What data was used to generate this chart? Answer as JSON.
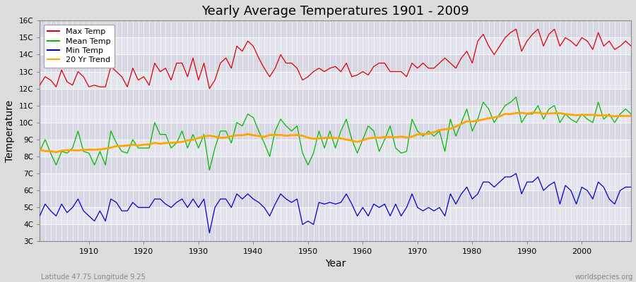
{
  "title": "Yearly Average Temperatures 1901 - 2009",
  "xlabel": "Year",
  "ylabel": "Temperature",
  "x_label_bottom_left": "Latitude 47.75 Longitude 9.25",
  "x_label_bottom_right": "worldspecies.org",
  "year_start": 1901,
  "year_end": 2009,
  "ylim": [
    3,
    16
  ],
  "yticks": [
    3,
    4,
    5,
    6,
    7,
    8,
    9,
    10,
    11,
    12,
    13,
    14,
    15,
    16
  ],
  "ytick_labels": [
    "3C",
    "4C",
    "5C",
    "6C",
    "7C",
    "8C",
    "9C",
    "10C",
    "11C",
    "12C",
    "13C",
    "14C",
    "15C",
    "16C"
  ],
  "xticks": [
    1910,
    1920,
    1930,
    1940,
    1950,
    1960,
    1970,
    1980,
    1990,
    2000
  ],
  "background_color": "#dcdcdc",
  "plot_bg_color": "#e0e0e8",
  "grid_color": "#ffffff",
  "max_temp_color": "#dd0000",
  "mean_temp_color": "#00bb00",
  "min_temp_color": "#0000cc",
  "trend_color": "#ffa500",
  "legend_items": [
    "Max Temp",
    "Mean Temp",
    "Min Temp",
    "20 Yr Trend"
  ],
  "max_temp": [
    12.2,
    12.7,
    12.5,
    12.1,
    13.1,
    12.4,
    12.2,
    13.0,
    12.7,
    12.1,
    12.2,
    12.1,
    12.1,
    13.3,
    13.0,
    12.7,
    12.1,
    13.2,
    12.5,
    12.7,
    12.2,
    13.5,
    13.0,
    13.2,
    12.5,
    13.5,
    13.5,
    12.7,
    13.8,
    12.5,
    13.5,
    12.0,
    12.5,
    13.5,
    13.8,
    13.2,
    14.5,
    14.2,
    14.8,
    14.5,
    13.8,
    13.2,
    12.7,
    13.2,
    14.0,
    13.5,
    13.5,
    13.2,
    12.5,
    12.7,
    13.0,
    13.2,
    13.0,
    13.2,
    13.3,
    13.0,
    13.5,
    12.7,
    12.8,
    13.0,
    12.8,
    13.3,
    13.5,
    13.5,
    13.0,
    13.0,
    13.0,
    12.7,
    13.5,
    13.2,
    13.5,
    13.2,
    13.2,
    13.5,
    13.8,
    13.5,
    13.2,
    13.8,
    14.2,
    13.5,
    14.8,
    15.2,
    14.5,
    14.0,
    14.5,
    15.0,
    15.3,
    15.5,
    14.2,
    14.8,
    15.2,
    15.5,
    14.5,
    15.2,
    15.5,
    14.5,
    15.0,
    14.8,
    14.5,
    15.0,
    14.8,
    14.3,
    15.3,
    14.5,
    14.8,
    14.3,
    14.5,
    14.8,
    14.5
  ],
  "mean_temp": [
    8.3,
    9.0,
    8.2,
    7.5,
    8.3,
    8.2,
    8.5,
    9.5,
    8.3,
    8.2,
    7.5,
    8.3,
    7.5,
    9.5,
    8.8,
    8.3,
    8.2,
    9.0,
    8.5,
    8.5,
    8.5,
    10.0,
    9.3,
    9.3,
    8.5,
    8.8,
    9.5,
    8.5,
    9.3,
    8.5,
    9.3,
    7.2,
    8.5,
    9.5,
    9.5,
    8.8,
    10.0,
    9.8,
    10.5,
    10.3,
    9.5,
    8.8,
    8.0,
    9.5,
    10.2,
    9.8,
    9.5,
    9.8,
    8.2,
    7.5,
    8.2,
    9.5,
    8.5,
    9.5,
    8.5,
    9.5,
    10.2,
    9.0,
    8.2,
    9.0,
    9.8,
    9.5,
    8.3,
    9.0,
    9.8,
    8.5,
    8.2,
    8.3,
    10.2,
    9.5,
    9.2,
    9.5,
    9.2,
    9.5,
    8.3,
    10.2,
    9.2,
    10.0,
    10.8,
    9.5,
    10.2,
    11.2,
    10.8,
    10.0,
    10.5,
    11.0,
    11.2,
    11.5,
    10.0,
    10.5,
    10.5,
    11.0,
    10.2,
    10.8,
    11.0,
    10.0,
    10.5,
    10.2,
    10.0,
    10.5,
    10.2,
    10.0,
    11.2,
    10.2,
    10.5,
    10.0,
    10.5,
    10.8,
    10.5
  ],
  "min_temp": [
    4.5,
    5.2,
    4.8,
    4.5,
    5.2,
    4.7,
    5.0,
    5.5,
    4.8,
    4.5,
    4.2,
    4.8,
    4.2,
    5.5,
    5.3,
    4.8,
    4.8,
    5.3,
    5.0,
    5.0,
    5.0,
    5.5,
    5.5,
    5.2,
    5.0,
    5.3,
    5.5,
    5.0,
    5.5,
    5.0,
    5.5,
    3.5,
    5.0,
    5.5,
    5.5,
    5.0,
    5.8,
    5.5,
    5.8,
    5.5,
    5.3,
    5.0,
    4.5,
    5.2,
    5.8,
    5.5,
    5.3,
    5.5,
    4.0,
    4.2,
    4.0,
    5.3,
    5.2,
    5.3,
    5.2,
    5.3,
    5.8,
    5.2,
    4.5,
    5.0,
    4.5,
    5.2,
    5.0,
    5.2,
    4.5,
    5.2,
    4.5,
    5.0,
    5.8,
    5.0,
    4.8,
    5.0,
    4.8,
    5.0,
    4.5,
    5.8,
    5.2,
    5.8,
    6.2,
    5.5,
    5.8,
    6.5,
    6.5,
    6.2,
    6.5,
    6.8,
    6.8,
    7.0,
    5.8,
    6.5,
    6.5,
    6.8,
    6.0,
    6.3,
    6.5,
    5.2,
    6.3,
    6.0,
    5.2,
    6.2,
    6.0,
    5.5,
    6.5,
    6.2,
    5.5,
    5.2,
    6.0,
    6.2,
    6.2
  ]
}
